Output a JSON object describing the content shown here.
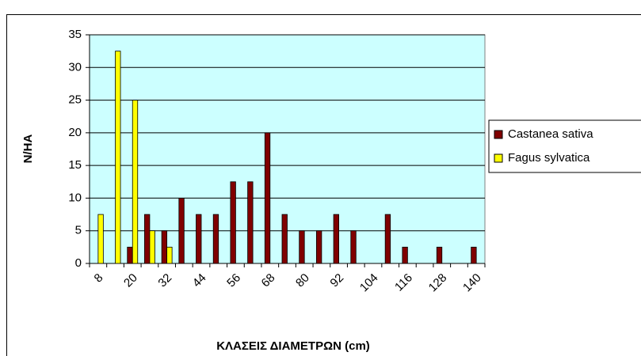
{
  "chart_data": {
    "type": "bar",
    "x_label": "ΚΛΑΣΕΙΣ ΔΙΑΜΕΤΡΩΝ (cm)",
    "y_label": "N/HA",
    "categories": [
      8,
      null,
      20,
      null,
      32,
      null,
      44,
      null,
      56,
      null,
      68,
      null,
      80,
      null,
      92,
      null,
      104,
      null,
      116,
      null,
      128,
      null,
      140
    ],
    "series": [
      {
        "name": "Castanea sativa",
        "color": "#800000",
        "values": [
          0,
          0,
          2.5,
          7.5,
          5,
          10,
          7.5,
          7.5,
          12.5,
          12.5,
          20,
          7.5,
          5,
          5,
          7.5,
          5,
          0,
          7.5,
          2.5,
          0,
          2.5,
          0,
          2.5
        ]
      },
      {
        "name": "Fagus sylvatica",
        "color": "#ffff00",
        "values": [
          7.5,
          32.5,
          25,
          5,
          2.5,
          0,
          0,
          0,
          0,
          0,
          0,
          0,
          0,
          0,
          0,
          0,
          0,
          0,
          0,
          0,
          0,
          0,
          0
        ]
      }
    ],
    "ylim": [
      0,
      35
    ],
    "yticks": [
      0,
      5,
      10,
      15,
      20,
      25,
      30,
      35
    ],
    "grid": true,
    "background": "#ccffff",
    "legend": "right"
  }
}
